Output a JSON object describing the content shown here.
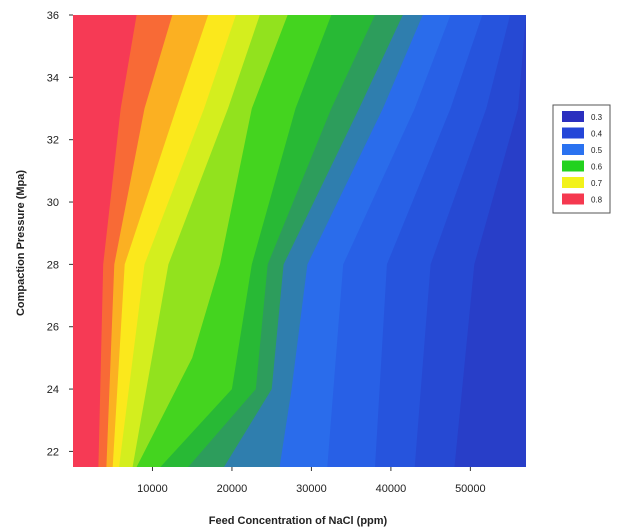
{
  "chart_data": {
    "type": "heatmap",
    "subtype": "filled-contour",
    "title": "",
    "xlabel": "Feed Concentration of NaCl (ppm)",
    "ylabel": "Compaction Pressure (Mpa)",
    "xlim": [
      0,
      57000
    ],
    "ylim": [
      21.5,
      36
    ],
    "x_ticks": [
      10000,
      20000,
      30000,
      40000,
      50000
    ],
    "y_ticks": [
      22,
      24,
      26,
      28,
      30,
      32,
      34,
      36
    ],
    "grid": false,
    "legend_position": "right",
    "legend": [
      {
        "label": "0.3",
        "color": "#2b2fbf"
      },
      {
        "label": "0.4",
        "color": "#2446d8"
      },
      {
        "label": "0.5",
        "color": "#2a72f0"
      },
      {
        "label": "0.6",
        "color": "#22d21e"
      },
      {
        "label": "0.7",
        "color": "#f2f21a"
      },
      {
        "label": "0.8",
        "color": "#f5384f"
      }
    ],
    "contour_levels": [
      0.3,
      0.35,
      0.4,
      0.45,
      0.5,
      0.55,
      0.6,
      0.65,
      0.7,
      0.75,
      0.8
    ],
    "contours": [
      {
        "level": 0.75,
        "color": "#f86a36",
        "points": [
          [
            3200,
            21.5
          ],
          [
            3800,
            28
          ],
          [
            6000,
            33
          ],
          [
            8000,
            36
          ]
        ]
      },
      {
        "level": 0.7,
        "color": "#fbb022",
        "points": [
          [
            4200,
            21.5
          ],
          [
            5200,
            28
          ],
          [
            9000,
            33
          ],
          [
            12500,
            36
          ]
        ]
      },
      {
        "level": 0.68,
        "color": "#fbe81c",
        "points": [
          [
            5000,
            21.5
          ],
          [
            6500,
            28
          ],
          [
            13000,
            33
          ],
          [
            17000,
            36
          ]
        ]
      },
      {
        "level": 0.65,
        "color": "#d4ee1e",
        "points": [
          [
            5800,
            21.5
          ],
          [
            9000,
            28
          ],
          [
            16500,
            33
          ],
          [
            20500,
            36
          ]
        ]
      },
      {
        "level": 0.62,
        "color": "#92e21e",
        "points": [
          [
            7500,
            21.5
          ],
          [
            12000,
            28
          ],
          [
            19500,
            33
          ],
          [
            23500,
            36
          ]
        ]
      },
      {
        "level": 0.6,
        "color": "#44d41f",
        "points": [
          [
            8000,
            21.5
          ],
          [
            15000,
            25
          ],
          [
            18500,
            28
          ],
          [
            22500,
            33
          ],
          [
            27000,
            36
          ]
        ]
      },
      {
        "level": 0.55,
        "color": "#28b935",
        "points": [
          [
            11000,
            21.5
          ],
          [
            20000,
            24
          ],
          [
            22500,
            28
          ],
          [
            28000,
            33
          ],
          [
            32500,
            36
          ]
        ]
      },
      {
        "level": 0.52,
        "color": "#2d9d5c",
        "points": [
          [
            14500,
            21.5
          ],
          [
            23000,
            24
          ],
          [
            24500,
            28
          ],
          [
            32500,
            33
          ],
          [
            38000,
            36
          ]
        ]
      },
      {
        "level": 0.5,
        "color": "#2f7eae",
        "points": [
          [
            19000,
            21.5
          ],
          [
            25000,
            24
          ],
          [
            26500,
            28
          ],
          [
            36000,
            33
          ],
          [
            41500,
            36
          ]
        ]
      },
      {
        "level": 0.47,
        "color": "#2a6ceb",
        "points": [
          [
            26000,
            21.5
          ],
          [
            27500,
            24
          ],
          [
            29500,
            28
          ],
          [
            39000,
            33
          ],
          [
            44000,
            36
          ]
        ]
      },
      {
        "level": 0.44,
        "color": "#2860e6",
        "points": [
          [
            32000,
            21.5
          ],
          [
            34000,
            28
          ],
          [
            43000,
            33
          ],
          [
            47500,
            36
          ]
        ]
      },
      {
        "level": 0.41,
        "color": "#2654dd",
        "points": [
          [
            38000,
            21.5
          ],
          [
            39500,
            28
          ],
          [
            47500,
            33
          ],
          [
            51500,
            36
          ]
        ]
      },
      {
        "level": 0.38,
        "color": "#2649d3",
        "points": [
          [
            43000,
            21.5
          ],
          [
            45000,
            28
          ],
          [
            52000,
            33
          ],
          [
            55000,
            36
          ]
        ]
      },
      {
        "level": 0.35,
        "color": "#283ec8",
        "points": [
          [
            48000,
            21.5
          ],
          [
            50500,
            28
          ],
          [
            56000,
            33
          ],
          [
            57000,
            36
          ]
        ]
      }
    ]
  }
}
